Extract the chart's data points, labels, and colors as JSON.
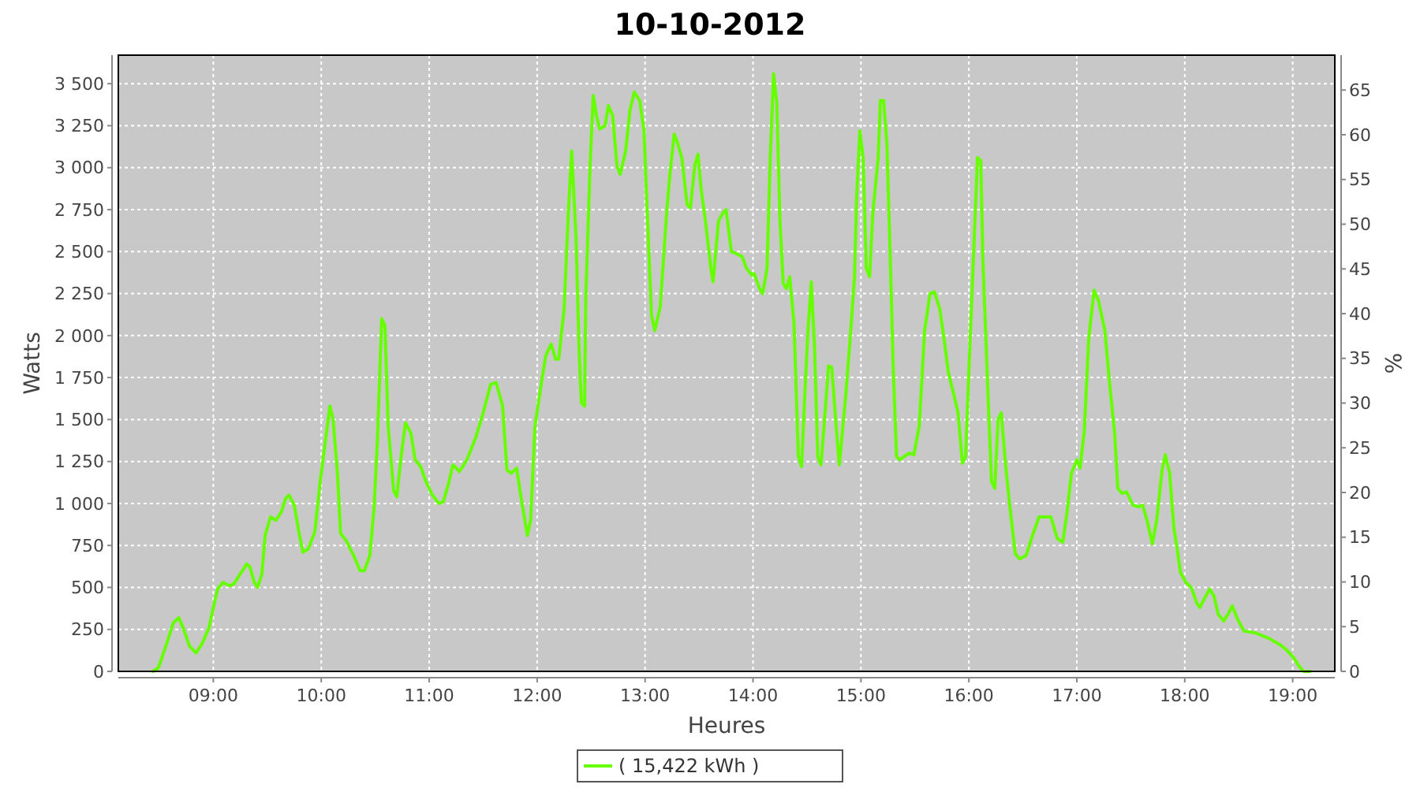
{
  "chart_data": {
    "type": "line",
    "title": "10-10-2012",
    "xlabel": "Heures",
    "ylabel": "Watts",
    "y2label": "%",
    "xlim": [
      8.12,
      19.39
    ],
    "xticks": [
      {
        "value": 9,
        "label": "09:00"
      },
      {
        "value": 10,
        "label": "10:00"
      },
      {
        "value": 11,
        "label": "11:00"
      },
      {
        "value": 12,
        "label": "12:00"
      },
      {
        "value": 13,
        "label": "13:00"
      },
      {
        "value": 14,
        "label": "14:00"
      },
      {
        "value": 15,
        "label": "15:00"
      },
      {
        "value": 16,
        "label": "16:00"
      },
      {
        "value": 17,
        "label": "17:00"
      },
      {
        "value": 18,
        "label": "18:00"
      },
      {
        "value": 19,
        "label": "19:00"
      }
    ],
    "ylim": [
      0,
      3670
    ],
    "yticks": [
      0,
      250,
      500,
      750,
      {
        "value": 1000,
        "label": "1 000"
      },
      {
        "value": 1250,
        "label": "1 250"
      },
      {
        "value": 1500,
        "label": "1 500"
      },
      {
        "value": 1750,
        "label": "1 750"
      },
      {
        "value": 2000,
        "label": "2 000"
      },
      {
        "value": 2250,
        "label": "2 250"
      },
      {
        "value": 2500,
        "label": "2 500"
      },
      {
        "value": 2750,
        "label": "2 750"
      },
      {
        "value": 3000,
        "label": "3 000"
      },
      {
        "value": 3250,
        "label": "3 250"
      },
      {
        "value": 3500,
        "label": "3 500"
      }
    ],
    "y2lim": [
      0,
      68.9
    ],
    "y2ticks": [
      0,
      5,
      10,
      15,
      20,
      25,
      30,
      35,
      40,
      45,
      50,
      55,
      60,
      65
    ],
    "grid": true,
    "legend": "bottom",
    "marker": "none",
    "line_style": "solid",
    "x": [
      8.44,
      8.49,
      8.56,
      8.63,
      8.68,
      8.72,
      8.78,
      8.84,
      8.9,
      8.96,
      9,
      9.04,
      9.09,
      9.15,
      9.19,
      9.25,
      9.31,
      9.34,
      9.38,
      9.41,
      9.45,
      9.48,
      9.53,
      9.58,
      9.63,
      9.67,
      9.7,
      9.75,
      9.79,
      9.83,
      9.88,
      9.94,
      9.99,
      10.08,
      10.11,
      10.15,
      10.18,
      10.23,
      10.3,
      10.36,
      10.4,
      10.45,
      10.49,
      10.52,
      10.56,
      10.59,
      10.62,
      10.67,
      10.7,
      10.74,
      10.78,
      10.83,
      10.87,
      10.92,
      10.97,
      11.03,
      11.09,
      11.13,
      11.18,
      11.22,
      11.28,
      11.35,
      11.43,
      11.5,
      11.57,
      11.62,
      11.68,
      11.72,
      11.76,
      11.81,
      11.85,
      11.91,
      11.94,
      11.98,
      12.04,
      12.08,
      12.13,
      12.17,
      12.2,
      12.25,
      12.29,
      12.32,
      12.36,
      12.39,
      12.41,
      12.44,
      12.45,
      12.49,
      12.52,
      12.55,
      12.58,
      12.63,
      12.66,
      12.7,
      12.74,
      12.77,
      12.82,
      12.86,
      12.9,
      12.95,
      12.99,
      13.02,
      13.06,
      13.09,
      13.14,
      13.2,
      13.23,
      13.27,
      13.3,
      13.34,
      13.39,
      13.42,
      13.46,
      13.49,
      13.52,
      13.56,
      13.61,
      13.63,
      13.68,
      13.72,
      13.75,
      13.8,
      13.84,
      13.9,
      13.94,
      13.99,
      14.01,
      14.06,
      14.09,
      14.13,
      14.16,
      14.19,
      14.22,
      14.25,
      14.28,
      14.31,
      14.34,
      14.38,
      14.42,
      14.45,
      14.48,
      14.51,
      14.54,
      14.57,
      14.6,
      14.63,
      14.67,
      14.7,
      14.73,
      14.77,
      14.8,
      14.86,
      14.91,
      14.94,
      14.96,
      14.99,
      15.02,
      15.05,
      15.08,
      15.11,
      15.16,
      15.18,
      15.21,
      15.24,
      15.27,
      15.3,
      15.33,
      15.36,
      15.4,
      15.45,
      15.49,
      15.54,
      15.59,
      15.64,
      15.68,
      15.73,
      15.77,
      15.81,
      15.86,
      15.9,
      15.94,
      15.97,
      16,
      16.05,
      16.08,
      16.11,
      16.13,
      16.18,
      16.21,
      16.24,
      16.27,
      16.3,
      16.34,
      16.38,
      16.43,
      16.47,
      16.53,
      16.59,
      16.65,
      16.69,
      16.76,
      16.82,
      16.87,
      16.91,
      16.95,
      17,
      17.03,
      17.07,
      17.11,
      17.16,
      17.2,
      17.26,
      17.3,
      17.35,
      17.38,
      17.42,
      17.46,
      17.52,
      17.57,
      17.61,
      17.65,
      17.7,
      17.74,
      17.79,
      17.82,
      17.86,
      17.9,
      17.93,
      17.96,
      18.01,
      18.06,
      18.11,
      18.14,
      18.18,
      18.23,
      18.27,
      18.31,
      18.36,
      18.4,
      18.44,
      18.49,
      18.55,
      18.65,
      18.77,
      18.88,
      18.94,
      19.01,
      19.06,
      19.1,
      19.16
    ],
    "series": [
      {
        "name": "( 15,422 kWh )",
        "color": "#66ff00",
        "values": [
          0,
          20,
          150,
          290,
          320,
          260,
          150,
          110,
          170,
          260,
          380,
          490,
          530,
          510,
          520,
          580,
          640,
          620,
          530,
          500,
          580,
          810,
          920,
          900,
          950,
          1030,
          1050,
          990,
          840,
          710,
          730,
          830,
          1130,
          1580,
          1500,
          1180,
          820,
          780,
          690,
          600,
          600,
          690,
          980,
          1370,
          2100,
          2060,
          1460,
          1080,
          1040,
          1280,
          1480,
          1420,
          1260,
          1220,
          1130,
          1050,
          1000,
          1010,
          1120,
          1230,
          1190,
          1260,
          1390,
          1540,
          1710,
          1720,
          1580,
          1200,
          1180,
          1210,
          1040,
          810,
          900,
          1460,
          1720,
          1880,
          1950,
          1860,
          1860,
          2160,
          2740,
          3100,
          2590,
          1890,
          1600,
          1580,
          2210,
          3000,
          3430,
          3310,
          3230,
          3250,
          3370,
          3310,
          3010,
          2960,
          3100,
          3340,
          3450,
          3400,
          3220,
          2730,
          2120,
          2030,
          2170,
          2730,
          2960,
          3200,
          3150,
          3060,
          2780,
          2760,
          3010,
          3080,
          2870,
          2680,
          2400,
          2320,
          2680,
          2730,
          2750,
          2500,
          2490,
          2470,
          2400,
          2360,
          2370,
          2280,
          2250,
          2400,
          3060,
          3560,
          3390,
          2680,
          2310,
          2280,
          2350,
          2070,
          1280,
          1220,
          1650,
          2040,
          2320,
          1930,
          1280,
          1230,
          1560,
          1820,
          1810,
          1460,
          1230,
          1650,
          2070,
          2350,
          2820,
          3220,
          3060,
          2400,
          2350,
          2730,
          3060,
          3400,
          3400,
          3150,
          2500,
          1790,
          1280,
          1260,
          1280,
          1300,
          1290,
          1460,
          2030,
          2250,
          2260,
          2160,
          1980,
          1780,
          1650,
          1540,
          1240,
          1280,
          1790,
          2590,
          3060,
          3040,
          2450,
          1600,
          1130,
          1090,
          1500,
          1540,
          1230,
          980,
          700,
          670,
          690,
          810,
          920,
          920,
          920,
          790,
          770,
          950,
          1180,
          1260,
          1210,
          1440,
          1980,
          2270,
          2210,
          2030,
          1740,
          1420,
          1090,
          1060,
          1070,
          990,
          980,
          990,
          900,
          760,
          900,
          1200,
          1290,
          1180,
          850,
          730,
          590,
          530,
          500,
          410,
          380,
          430,
          490,
          450,
          340,
          300,
          340,
          390,
          310,
          240,
          230,
          200,
          160,
          130,
          80,
          30,
          0,
          0
        ]
      }
    ]
  }
}
